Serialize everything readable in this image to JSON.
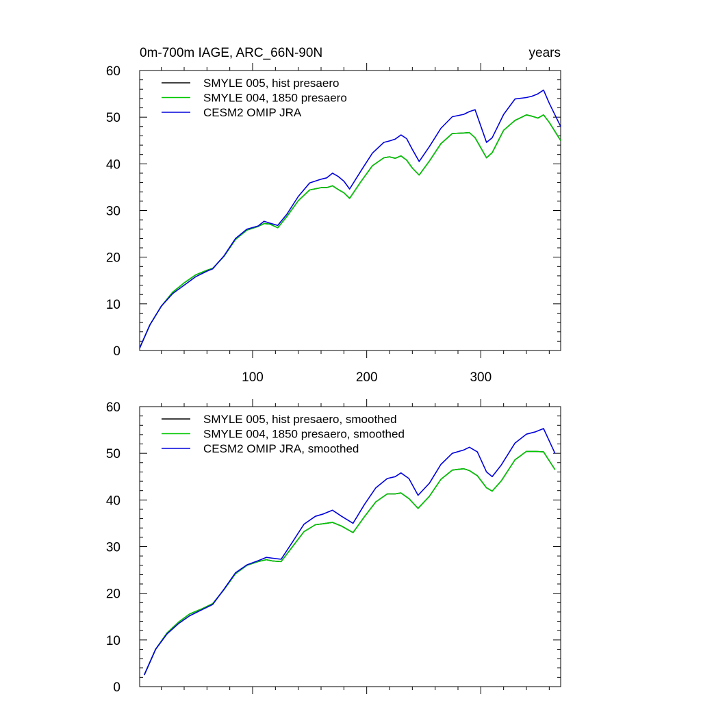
{
  "chart_data": [
    {
      "type": "line",
      "title_left": "0m-700m IAGE, ARC_66N-90N",
      "title_right": "years",
      "xlim": [
        1,
        370
      ],
      "ylim": [
        0,
        60
      ],
      "xticks": [
        100,
        200,
        300
      ],
      "xtick_labels": [
        "100",
        "200",
        "300"
      ],
      "yticks": [
        0,
        10,
        20,
        30,
        40,
        50,
        60
      ],
      "ytick_labels": [
        "0",
        "10",
        "20",
        "30",
        "40",
        "50",
        "60"
      ],
      "legend_position": "top-left",
      "series": [
        {
          "name": "SMYLE 005, hist presaero",
          "color": "#000000",
          "x": [
            1,
            10,
            20,
            30,
            40,
            50,
            60,
            65,
            75,
            85,
            95,
            105,
            110,
            115,
            122,
            130,
            140,
            150,
            160,
            165,
            170,
            175,
            180,
            185,
            195,
            205,
            215,
            220,
            225,
            230,
            235,
            240,
            246,
            255,
            265,
            275,
            285,
            290,
            295,
            305,
            310,
            320,
            330,
            340,
            345,
            350,
            355,
            360,
            370
          ],
          "y": [
            0.5,
            5.5,
            9.5,
            12.5,
            14.5,
            16.2,
            17.2,
            17.6,
            20.2,
            23.8,
            25.8,
            26.6,
            27.2,
            27.1,
            26.3,
            28.7,
            32.1,
            34.4,
            34.9,
            34.9,
            35.3,
            34.5,
            33.8,
            32.6,
            36.2,
            39.6,
            41.3,
            41.5,
            41.2,
            41.7,
            40.8,
            39.1,
            37.6,
            40.6,
            44.3,
            46.5,
            46.6,
            46.7,
            45.6,
            41.3,
            42.4,
            47.2,
            49.3,
            50.5,
            50.2,
            49.8,
            50.5,
            48.9,
            45.0
          ]
        },
        {
          "name": "SMYLE 004, 1850 presaero",
          "color": "#00c800",
          "x": [
            1,
            10,
            20,
            30,
            40,
            50,
            60,
            65,
            75,
            85,
            95,
            105,
            110,
            115,
            122,
            130,
            140,
            150,
            160,
            165,
            170,
            175,
            180,
            185,
            195,
            205,
            215,
            220,
            225,
            230,
            235,
            240,
            246,
            255,
            265,
            275,
            285,
            290,
            295,
            305,
            310,
            320,
            330,
            340,
            345,
            350,
            355,
            360,
            370
          ],
          "y": [
            0.5,
            5.5,
            9.5,
            12.5,
            14.5,
            16.2,
            17.2,
            17.6,
            20.2,
            23.8,
            25.8,
            26.6,
            27.2,
            27.1,
            26.3,
            28.7,
            32.1,
            34.4,
            34.9,
            34.9,
            35.3,
            34.5,
            33.8,
            32.6,
            36.2,
            39.6,
            41.3,
            41.5,
            41.2,
            41.7,
            40.8,
            39.1,
            37.6,
            40.6,
            44.3,
            46.5,
            46.6,
            46.7,
            45.6,
            41.3,
            42.4,
            47.2,
            49.3,
            50.5,
            50.2,
            49.8,
            50.5,
            48.9,
            45.0
          ]
        },
        {
          "name": "CESM2 OMIP JRA",
          "color": "#0000dc",
          "x": [
            1,
            10,
            20,
            30,
            40,
            50,
            60,
            65,
            75,
            85,
            95,
            105,
            110,
            115,
            122,
            130,
            140,
            150,
            160,
            165,
            170,
            175,
            180,
            185,
            195,
            205,
            215,
            220,
            225,
            230,
            235,
            240,
            246,
            255,
            265,
            275,
            285,
            290,
            295,
            305,
            310,
            320,
            330,
            340,
            345,
            350,
            355,
            360,
            370
          ],
          "y": [
            0.5,
            5.5,
            9.5,
            12.2,
            14.0,
            15.8,
            17.0,
            17.5,
            20.3,
            24.0,
            26.0,
            26.7,
            27.7,
            27.3,
            26.8,
            29.2,
            33.0,
            35.9,
            36.7,
            37.0,
            38.0,
            37.3,
            36.3,
            34.6,
            38.5,
            42.3,
            44.6,
            44.9,
            45.3,
            46.2,
            45.4,
            43.1,
            40.5,
            43.7,
            47.6,
            50.1,
            50.6,
            51.2,
            51.6,
            44.6,
            45.6,
            50.6,
            53.9,
            54.2,
            54.5,
            55.0,
            55.8,
            53.0,
            48.0
          ]
        }
      ]
    },
    {
      "type": "line",
      "xlim": [
        1,
        370
      ],
      "ylim": [
        0,
        60
      ],
      "xticks": [
        100,
        200,
        300
      ],
      "yticks": [
        0,
        10,
        20,
        30,
        40,
        50,
        60
      ],
      "ytick_labels": [
        "0",
        "10",
        "20",
        "30",
        "40",
        "50",
        "60"
      ],
      "legend_position": "top-left",
      "series": [
        {
          "name": "SMYLE 005, hist presaero, smoothed",
          "color": "#000000",
          "x": [
            5,
            15,
            25,
            35,
            45,
            55,
            65,
            75,
            85,
            95,
            105,
            112,
            118,
            125,
            135,
            145,
            155,
            162,
            170,
            178,
            188,
            198,
            208,
            218,
            225,
            230,
            237,
            245,
            255,
            265,
            275,
            285,
            290,
            297,
            305,
            310,
            318,
            330,
            340,
            348,
            355,
            365
          ],
          "y": [
            2.5,
            8.0,
            11.5,
            13.8,
            15.6,
            16.6,
            17.8,
            20.8,
            24.2,
            26.0,
            26.8,
            27.2,
            26.9,
            26.8,
            30.0,
            33.2,
            34.7,
            34.9,
            35.2,
            34.4,
            33.0,
            36.4,
            39.6,
            41.3,
            41.3,
            41.5,
            40.3,
            38.2,
            40.8,
            44.4,
            46.4,
            46.7,
            46.3,
            45.2,
            42.6,
            41.9,
            44.1,
            48.6,
            50.4,
            50.4,
            50.3,
            46.5
          ]
        },
        {
          "name": "SMYLE 004, 1850 presaero, smoothed",
          "color": "#00c800",
          "x": [
            5,
            15,
            25,
            35,
            45,
            55,
            65,
            75,
            85,
            95,
            105,
            112,
            118,
            125,
            135,
            145,
            155,
            162,
            170,
            178,
            188,
            198,
            208,
            218,
            225,
            230,
            237,
            245,
            255,
            265,
            275,
            285,
            290,
            297,
            305,
            310,
            318,
            330,
            340,
            348,
            355,
            365
          ],
          "y": [
            2.5,
            8.0,
            11.5,
            13.8,
            15.6,
            16.6,
            17.8,
            20.8,
            24.2,
            26.0,
            26.8,
            27.2,
            26.9,
            26.8,
            30.0,
            33.2,
            34.7,
            34.9,
            35.2,
            34.4,
            33.0,
            36.4,
            39.6,
            41.3,
            41.3,
            41.5,
            40.3,
            38.2,
            40.8,
            44.4,
            46.4,
            46.7,
            46.3,
            45.2,
            42.6,
            41.9,
            44.1,
            48.6,
            50.4,
            50.4,
            50.3,
            46.5
          ]
        },
        {
          "name": "CESM2 OMIP JRA, smoothed",
          "color": "#0000dc",
          "x": [
            5,
            15,
            25,
            35,
            45,
            55,
            65,
            75,
            85,
            95,
            105,
            112,
            118,
            125,
            135,
            145,
            155,
            162,
            170,
            178,
            188,
            198,
            208,
            218,
            225,
            230,
            237,
            245,
            255,
            265,
            275,
            285,
            290,
            297,
            305,
            310,
            318,
            330,
            340,
            348,
            355,
            365
          ],
          "y": [
            2.5,
            8.0,
            11.3,
            13.5,
            15.2,
            16.4,
            17.6,
            20.9,
            24.4,
            26.1,
            27.0,
            27.7,
            27.5,
            27.3,
            31.0,
            34.8,
            36.5,
            37.0,
            37.8,
            36.5,
            35.0,
            39.0,
            42.6,
            44.6,
            45.0,
            45.8,
            44.6,
            41.0,
            43.6,
            47.6,
            50.0,
            50.7,
            51.3,
            50.3,
            46.0,
            45.0,
            47.5,
            52.2,
            54.1,
            54.6,
            55.3,
            50.0
          ]
        }
      ]
    }
  ]
}
